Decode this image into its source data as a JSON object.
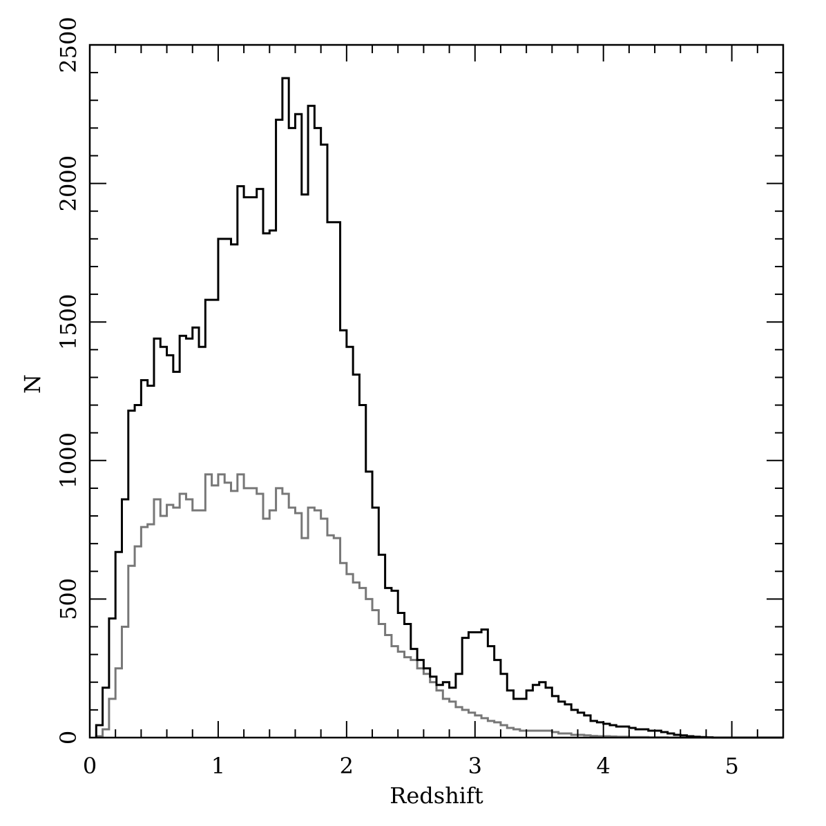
{
  "chart_data": {
    "type": "histogram",
    "xlabel": "Redshift",
    "ylabel": "N",
    "xlim": [
      0,
      5.4
    ],
    "ylim": [
      0,
      2500
    ],
    "bin_width": 0.05,
    "x_start": 0.05,
    "x_ticks": [
      0,
      1,
      2,
      3,
      4,
      5
    ],
    "x_tick_labels": [
      "0",
      "1",
      "2",
      "3",
      "4",
      "5"
    ],
    "x_minor_step": 0.2,
    "y_ticks": [
      0,
      500,
      1000,
      1500,
      2000,
      2500
    ],
    "y_tick_labels": [
      "0",
      "500",
      "1000",
      "1500",
      "2000",
      "2500"
    ],
    "y_minor_step": 100,
    "grid": false,
    "series": [
      {
        "color": "#000000",
        "values": [
          45,
          180,
          430,
          670,
          860,
          1180,
          1200,
          1290,
          1270,
          1440,
          1410,
          1380,
          1320,
          1450,
          1440,
          1480,
          1410,
          1580,
          1580,
          1800,
          1800,
          1780,
          1990,
          1950,
          1950,
          1980,
          1820,
          1830,
          2230,
          2380,
          2200,
          2250,
          1960,
          2280,
          2200,
          2140,
          1860,
          1860,
          1470,
          1410,
          1310,
          1200,
          960,
          830,
          660,
          540,
          530,
          450,
          410,
          320,
          280,
          250,
          220,
          190,
          200,
          180,
          230,
          360,
          380,
          380,
          390,
          330,
          280,
          230,
          170,
          140,
          140,
          170,
          190,
          200,
          180,
          150,
          130,
          120,
          100,
          90,
          80,
          60,
          55,
          50,
          45,
          40,
          40,
          35,
          30,
          30,
          25,
          25,
          20,
          15,
          10,
          8,
          5,
          3,
          2,
          1,
          0,
          0,
          0,
          0,
          0,
          0,
          0,
          0,
          0,
          0,
          0
        ]
      },
      {
        "color": "#777777",
        "values": [
          5,
          30,
          140,
          250,
          400,
          620,
          690,
          760,
          770,
          860,
          800,
          840,
          830,
          880,
          860,
          820,
          820,
          950,
          910,
          950,
          920,
          890,
          950,
          900,
          900,
          880,
          790,
          820,
          900,
          880,
          830,
          810,
          720,
          830,
          820,
          790,
          730,
          720,
          630,
          590,
          560,
          540,
          500,
          460,
          410,
          370,
          330,
          310,
          290,
          280,
          250,
          230,
          200,
          170,
          140,
          130,
          110,
          100,
          90,
          80,
          70,
          60,
          55,
          45,
          35,
          30,
          25,
          25,
          25,
          25,
          25,
          20,
          15,
          15,
          10,
          10,
          8,
          6,
          5,
          5,
          4,
          3,
          3,
          2,
          2,
          2,
          1,
          1,
          1,
          0,
          0,
          0,
          0,
          0,
          0,
          0,
          0,
          0,
          0,
          0,
          0,
          0,
          0,
          0,
          0,
          0,
          0
        ]
      }
    ]
  }
}
